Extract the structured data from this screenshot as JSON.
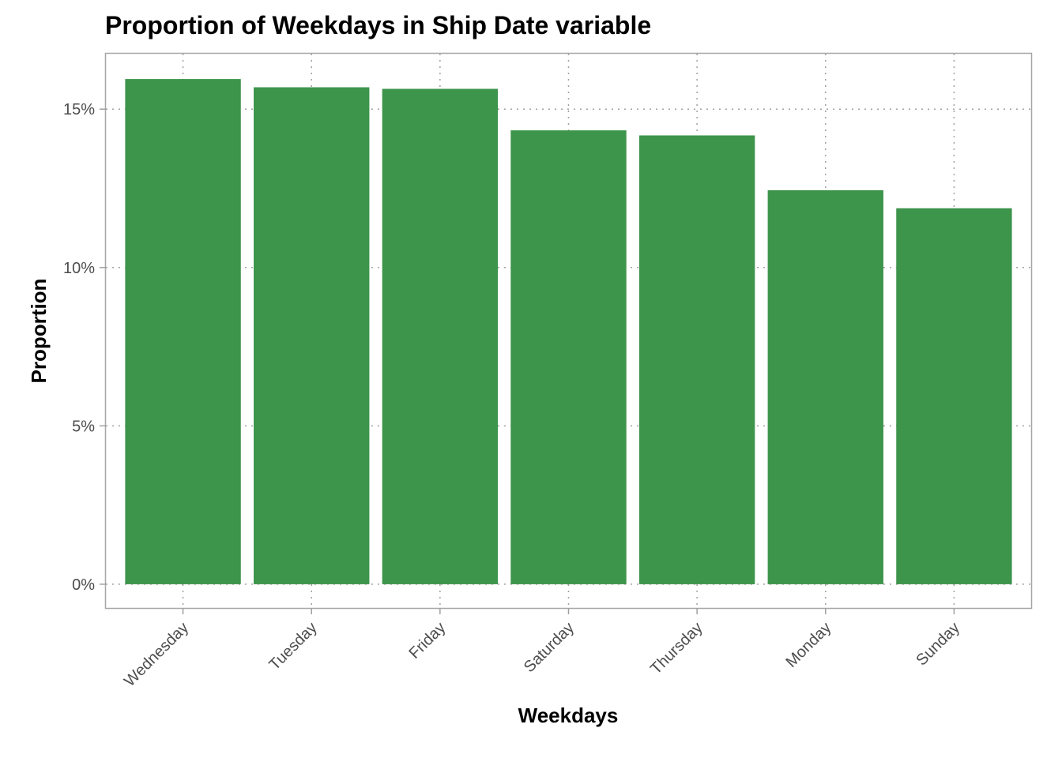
{
  "chart_data": {
    "type": "bar",
    "title": "Proportion of Weekdays in Ship Date variable",
    "xlabel": "Weekdays",
    "ylabel": "Proportion",
    "categories": [
      "Wednesday",
      "Tuesday",
      "Friday",
      "Saturday",
      "Thursday",
      "Monday",
      "Sunday"
    ],
    "values": [
      15.95,
      15.69,
      15.64,
      14.33,
      14.17,
      12.44,
      11.87
    ],
    "value_unit": "%",
    "ylim": [
      -0.75,
      16.75
    ],
    "yticks": [
      0,
      5,
      10,
      15
    ],
    "ytick_labels": [
      "0%",
      "5%",
      "10%",
      "15%"
    ],
    "bar_color": "#3d944b",
    "grid": true,
    "grid_style": "dotted",
    "legend": "none"
  }
}
